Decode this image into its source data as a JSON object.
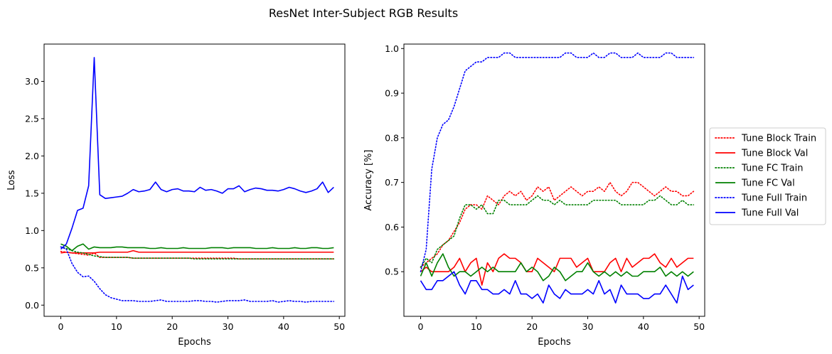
{
  "figure": {
    "title": "ResNet Inter-Subject RGB Results"
  },
  "chart_data": [
    {
      "type": "line",
      "xlabel": "Epochs",
      "ylabel": "Loss",
      "xlim": [
        -3,
        51
      ],
      "ylim": [
        -0.15,
        3.5
      ],
      "xticks": [
        0,
        10,
        20,
        30,
        40,
        50
      ],
      "yticks": [
        0.0,
        0.5,
        1.0,
        1.5,
        2.0,
        2.5,
        3.0
      ],
      "x": [
        0,
        1,
        2,
        3,
        4,
        5,
        6,
        7,
        8,
        9,
        10,
        11,
        12,
        13,
        14,
        15,
        16,
        17,
        18,
        19,
        20,
        21,
        22,
        23,
        24,
        25,
        26,
        27,
        28,
        29,
        30,
        31,
        32,
        33,
        34,
        35,
        36,
        37,
        38,
        39,
        40,
        41,
        42,
        43,
        44,
        45,
        46,
        47,
        48,
        49
      ],
      "series": [
        {
          "name": "Tune Block Train",
          "color": "#ff0000",
          "style": "dotted",
          "values": [
            0.72,
            0.71,
            0.7,
            0.69,
            0.68,
            0.67,
            0.7,
            0.64,
            0.64,
            0.64,
            0.64,
            0.64,
            0.64,
            0.63,
            0.63,
            0.63,
            0.63,
            0.63,
            0.63,
            0.63,
            0.63,
            0.63,
            0.63,
            0.63,
            0.63,
            0.63,
            0.63,
            0.63,
            0.63,
            0.63,
            0.63,
            0.63,
            0.62,
            0.62,
            0.62,
            0.62,
            0.62,
            0.62,
            0.62,
            0.62,
            0.62,
            0.62,
            0.62,
            0.62,
            0.62,
            0.62,
            0.62,
            0.62,
            0.62,
            0.62
          ]
        },
        {
          "name": "Tune Block Val",
          "color": "#ff0000",
          "style": "solid",
          "values": [
            0.7,
            0.71,
            0.7,
            0.7,
            0.7,
            0.7,
            0.7,
            0.71,
            0.71,
            0.71,
            0.71,
            0.71,
            0.71,
            0.73,
            0.71,
            0.71,
            0.71,
            0.71,
            0.71,
            0.71,
            0.71,
            0.71,
            0.71,
            0.71,
            0.71,
            0.71,
            0.71,
            0.71,
            0.71,
            0.71,
            0.71,
            0.71,
            0.71,
            0.71,
            0.71,
            0.71,
            0.71,
            0.71,
            0.71,
            0.71,
            0.71,
            0.71,
            0.71,
            0.71,
            0.71,
            0.71,
            0.71,
            0.71,
            0.71,
            0.71
          ]
        },
        {
          "name": "Tune FC Train",
          "color": "#008000",
          "style": "dotted",
          "values": [
            0.78,
            0.76,
            0.73,
            0.71,
            0.7,
            0.68,
            0.66,
            0.65,
            0.64,
            0.64,
            0.64,
            0.64,
            0.64,
            0.63,
            0.63,
            0.63,
            0.63,
            0.63,
            0.63,
            0.63,
            0.63,
            0.63,
            0.63,
            0.63,
            0.62,
            0.62,
            0.62,
            0.62,
            0.62,
            0.62,
            0.62,
            0.62,
            0.62,
            0.62,
            0.62,
            0.62,
            0.62,
            0.62,
            0.62,
            0.62,
            0.62,
            0.62,
            0.62,
            0.62,
            0.62,
            0.62,
            0.62,
            0.62,
            0.62,
            0.62
          ]
        },
        {
          "name": "Tune FC Val",
          "color": "#008000",
          "style": "solid",
          "values": [
            0.82,
            0.79,
            0.73,
            0.79,
            0.82,
            0.75,
            0.78,
            0.77,
            0.77,
            0.77,
            0.78,
            0.78,
            0.77,
            0.77,
            0.77,
            0.77,
            0.76,
            0.76,
            0.77,
            0.76,
            0.76,
            0.76,
            0.77,
            0.76,
            0.76,
            0.76,
            0.76,
            0.77,
            0.77,
            0.77,
            0.76,
            0.77,
            0.77,
            0.77,
            0.77,
            0.76,
            0.76,
            0.76,
            0.77,
            0.76,
            0.76,
            0.76,
            0.77,
            0.76,
            0.76,
            0.77,
            0.77,
            0.76,
            0.76,
            0.77
          ]
        },
        {
          "name": "Tune Full Train",
          "color": "#0000ff",
          "style": "dotted",
          "values": [
            0.78,
            0.75,
            0.56,
            0.44,
            0.38,
            0.39,
            0.32,
            0.22,
            0.14,
            0.1,
            0.08,
            0.06,
            0.06,
            0.06,
            0.05,
            0.05,
            0.05,
            0.06,
            0.07,
            0.05,
            0.05,
            0.05,
            0.05,
            0.05,
            0.06,
            0.06,
            0.05,
            0.05,
            0.04,
            0.05,
            0.06,
            0.06,
            0.06,
            0.07,
            0.05,
            0.05,
            0.05,
            0.05,
            0.06,
            0.04,
            0.05,
            0.06,
            0.05,
            0.05,
            0.04,
            0.05,
            0.05,
            0.05,
            0.05,
            0.05
          ]
        },
        {
          "name": "Tune Full Val",
          "color": "#0000ff",
          "style": "solid",
          "values": [
            0.75,
            0.82,
            1.03,
            1.27,
            1.3,
            1.6,
            3.32,
            1.48,
            1.43,
            1.44,
            1.45,
            1.46,
            1.5,
            1.55,
            1.52,
            1.53,
            1.55,
            1.65,
            1.55,
            1.52,
            1.55,
            1.56,
            1.53,
            1.53,
            1.52,
            1.58,
            1.54,
            1.55,
            1.53,
            1.5,
            1.56,
            1.56,
            1.6,
            1.52,
            1.55,
            1.57,
            1.56,
            1.54,
            1.54,
            1.53,
            1.55,
            1.58,
            1.56,
            1.53,
            1.51,
            1.53,
            1.56,
            1.65,
            1.51,
            1.58
          ]
        }
      ]
    },
    {
      "type": "line",
      "xlabel": "Epochs",
      "ylabel": "Accuracy [%]",
      "xlim": [
        -3,
        51
      ],
      "ylim": [
        0.4,
        1.01
      ],
      "xticks": [
        0,
        10,
        20,
        30,
        40,
        50
      ],
      "yticks": [
        0.5,
        0.6,
        0.7,
        0.8,
        0.9,
        1.0
      ],
      "legend": "outside-right",
      "x": [
        0,
        1,
        2,
        3,
        4,
        5,
        6,
        7,
        8,
        9,
        10,
        11,
        12,
        13,
        14,
        15,
        16,
        17,
        18,
        19,
        20,
        21,
        22,
        23,
        24,
        25,
        26,
        27,
        28,
        29,
        30,
        31,
        32,
        33,
        34,
        35,
        36,
        37,
        38,
        39,
        40,
        41,
        42,
        43,
        44,
        45,
        46,
        47,
        48,
        49
      ],
      "series": [
        {
          "name": "Tune Block Train",
          "color": "#ff0000",
          "style": "dotted",
          "values": [
            0.51,
            0.52,
            0.53,
            0.54,
            0.56,
            0.57,
            0.59,
            0.61,
            0.64,
            0.65,
            0.65,
            0.64,
            0.67,
            0.66,
            0.65,
            0.67,
            0.68,
            0.67,
            0.68,
            0.66,
            0.67,
            0.69,
            0.68,
            0.69,
            0.66,
            0.67,
            0.68,
            0.69,
            0.68,
            0.67,
            0.68,
            0.68,
            0.69,
            0.68,
            0.7,
            0.68,
            0.67,
            0.68,
            0.7,
            0.7,
            0.69,
            0.68,
            0.67,
            0.68,
            0.69,
            0.68,
            0.68,
            0.67,
            0.67,
            0.68
          ]
        },
        {
          "name": "Tune Block Val",
          "color": "#ff0000",
          "style": "solid",
          "values": [
            0.5,
            0.51,
            0.5,
            0.5,
            0.5,
            0.5,
            0.51,
            0.53,
            0.5,
            0.52,
            0.53,
            0.47,
            0.52,
            0.5,
            0.53,
            0.54,
            0.53,
            0.53,
            0.52,
            0.5,
            0.5,
            0.53,
            0.52,
            0.51,
            0.5,
            0.53,
            0.53,
            0.53,
            0.51,
            0.52,
            0.53,
            0.5,
            0.5,
            0.5,
            0.52,
            0.53,
            0.5,
            0.53,
            0.51,
            0.52,
            0.53,
            0.53,
            0.54,
            0.52,
            0.51,
            0.53,
            0.51,
            0.52,
            0.53,
            0.53
          ]
        },
        {
          "name": "Tune FC Train",
          "color": "#008000",
          "style": "dotted",
          "values": [
            0.51,
            0.53,
            0.52,
            0.55,
            0.56,
            0.57,
            0.58,
            0.62,
            0.65,
            0.65,
            0.64,
            0.65,
            0.63,
            0.63,
            0.66,
            0.66,
            0.65,
            0.65,
            0.65,
            0.65,
            0.66,
            0.67,
            0.66,
            0.66,
            0.65,
            0.66,
            0.65,
            0.65,
            0.65,
            0.65,
            0.65,
            0.66,
            0.66,
            0.66,
            0.66,
            0.66,
            0.65,
            0.65,
            0.65,
            0.65,
            0.65,
            0.66,
            0.66,
            0.67,
            0.66,
            0.65,
            0.65,
            0.66,
            0.65,
            0.65
          ]
        },
        {
          "name": "Tune FC Val",
          "color": "#008000",
          "style": "solid",
          "values": [
            0.49,
            0.52,
            0.49,
            0.52,
            0.54,
            0.51,
            0.49,
            0.5,
            0.5,
            0.49,
            0.5,
            0.51,
            0.5,
            0.51,
            0.5,
            0.5,
            0.5,
            0.5,
            0.52,
            0.5,
            0.51,
            0.5,
            0.48,
            0.49,
            0.51,
            0.5,
            0.48,
            0.49,
            0.5,
            0.5,
            0.52,
            0.5,
            0.49,
            0.5,
            0.49,
            0.5,
            0.49,
            0.5,
            0.49,
            0.49,
            0.5,
            0.5,
            0.5,
            0.51,
            0.49,
            0.5,
            0.49,
            0.5,
            0.49,
            0.5
          ]
        },
        {
          "name": "Tune Full Train",
          "color": "#0000ff",
          "style": "dotted",
          "values": [
            0.5,
            0.55,
            0.73,
            0.8,
            0.83,
            0.84,
            0.87,
            0.91,
            0.95,
            0.96,
            0.97,
            0.97,
            0.98,
            0.98,
            0.98,
            0.99,
            0.99,
            0.98,
            0.98,
            0.98,
            0.98,
            0.98,
            0.98,
            0.98,
            0.98,
            0.98,
            0.99,
            0.99,
            0.98,
            0.98,
            0.98,
            0.99,
            0.98,
            0.98,
            0.99,
            0.99,
            0.98,
            0.98,
            0.98,
            0.99,
            0.98,
            0.98,
            0.98,
            0.98,
            0.99,
            0.99,
            0.98,
            0.98,
            0.98,
            0.98
          ]
        },
        {
          "name": "Tune Full Val",
          "color": "#0000ff",
          "style": "solid",
          "values": [
            0.48,
            0.46,
            0.46,
            0.48,
            0.48,
            0.49,
            0.5,
            0.47,
            0.45,
            0.48,
            0.48,
            0.46,
            0.46,
            0.45,
            0.45,
            0.46,
            0.45,
            0.48,
            0.45,
            0.45,
            0.44,
            0.45,
            0.43,
            0.47,
            0.45,
            0.44,
            0.46,
            0.45,
            0.45,
            0.45,
            0.46,
            0.45,
            0.48,
            0.45,
            0.46,
            0.43,
            0.47,
            0.45,
            0.45,
            0.45,
            0.44,
            0.44,
            0.45,
            0.45,
            0.47,
            0.45,
            0.43,
            0.49,
            0.46,
            0.47
          ]
        }
      ]
    }
  ]
}
